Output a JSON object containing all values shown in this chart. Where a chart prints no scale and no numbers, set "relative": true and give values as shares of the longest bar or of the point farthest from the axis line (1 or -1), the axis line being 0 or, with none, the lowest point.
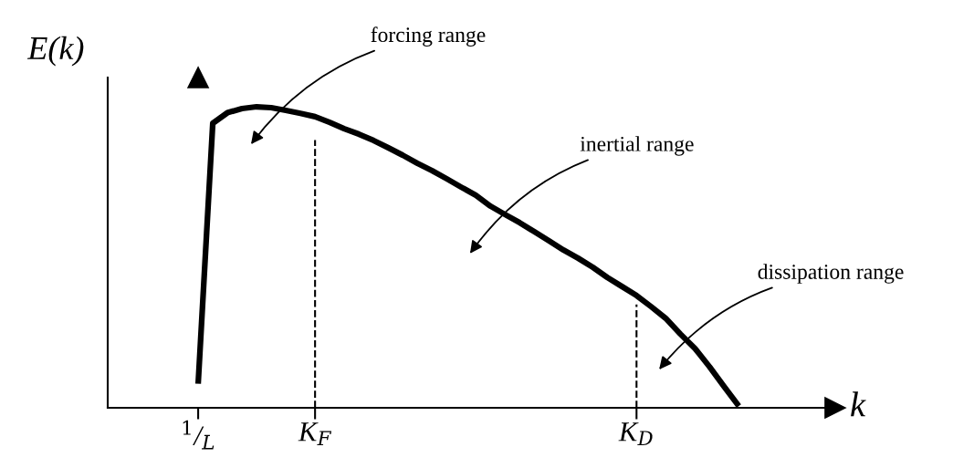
{
  "chart_data": {
    "type": "line",
    "relative": true,
    "ylabel": "E(k)",
    "xlabel": "k",
    "categories": [
      "$^{1}$/$_{L}$",
      null,
      null,
      null,
      null,
      null,
      null,
      null,
      "K$_{F}$",
      null,
      null,
      null,
      null,
      null,
      null,
      null,
      null,
      null,
      null,
      null,
      null,
      null,
      null,
      null,
      null,
      null,
      null,
      null,
      null,
      null,
      "K$_{D}$",
      null,
      null,
      null,
      null,
      null,
      null,
      null
    ],
    "series": [
      {
        "color": "#000000",
        "values": [
          0.08,
          0.945,
          0.98,
          0.994,
          1.0,
          0.997,
          0.988,
          0.978,
          0.967,
          0.948,
          0.927,
          0.909,
          0.888,
          0.864,
          0.839,
          0.812,
          0.788,
          0.761,
          0.733,
          0.706,
          0.67,
          0.642,
          0.615,
          0.585,
          0.555,
          0.524,
          0.497,
          0.467,
          0.433,
          0.403,
          0.373,
          0.336,
          0.297,
          0.245,
          0.197,
          0.136,
          0.07,
          0.006
        ]
      }
    ],
    "ref_lines": [
      {
        "axis": "x",
        "value": "K$_{F}$",
        "color": "#000000",
        "line_style": "dashed"
      },
      {
        "axis": "x",
        "value": "K$_{D}$",
        "color": "#000000",
        "line_style": "dashed"
      }
    ],
    "annotations": [
      "forcing range",
      "inertial range",
      "dissipation range"
    ],
    "grid": false,
    "legend": false,
    "marker": "none",
    "line_style": "solid"
  }
}
